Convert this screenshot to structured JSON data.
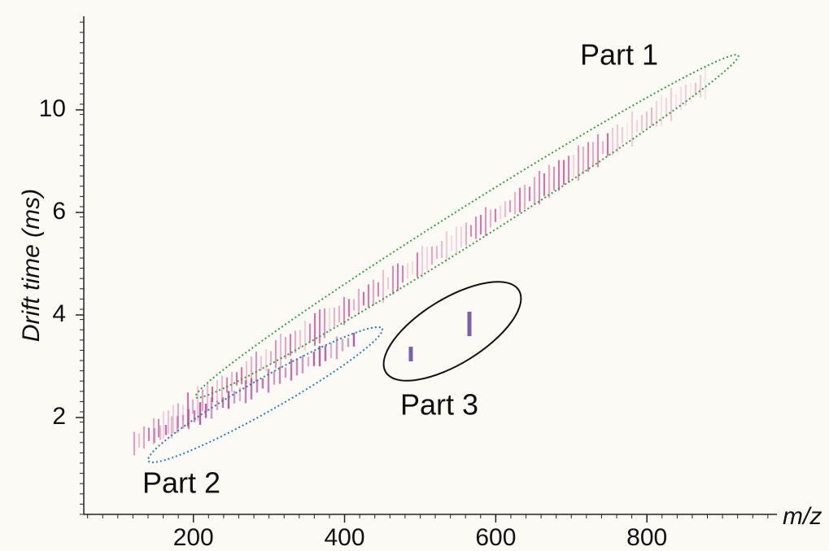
{
  "chart_data": {
    "type": "heatmap",
    "xlabel": "m/z",
    "ylabel": "Drift time (ms)",
    "xlim": [
      55,
      972
    ],
    "xticks": [
      200,
      400,
      600,
      800
    ],
    "yticks": [
      2,
      4,
      6,
      10
    ],
    "ytick_spacing": "even",
    "annotations": [
      {
        "text": "Part 1",
        "color": "#3a9a44"
      },
      {
        "text": "Part 2",
        "color": "#2a7bb6"
      },
      {
        "text": "Part 3",
        "color": "#111111"
      }
    ]
  }
}
